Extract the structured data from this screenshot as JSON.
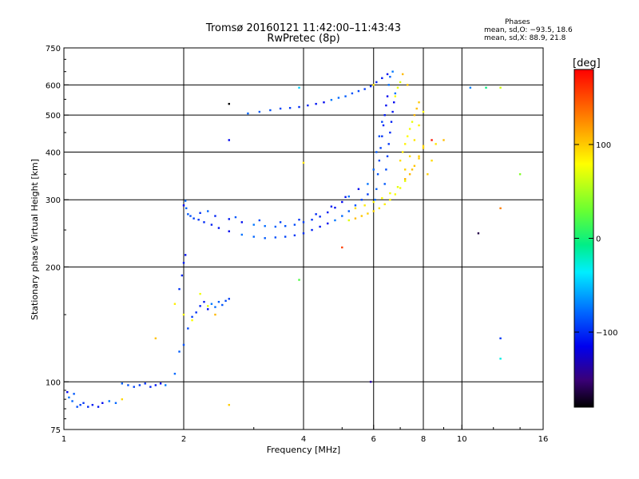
{
  "chart_data": {
    "type": "scatter",
    "title": "Tromsø 20160121 11:42:00–11:43:43",
    "subtitle": "RwPretec (8p)",
    "xlabel": "Frequency [MHz]",
    "ylabel": "Stationary phase Virtual Height [km]",
    "x_scale": "log",
    "y_scale": "log",
    "xlim": [
      1,
      16
    ],
    "ylim": [
      75,
      750
    ],
    "x_ticks": [
      1,
      2,
      4,
      6,
      8,
      10,
      16
    ],
    "x_tick_labels": [
      "1",
      "2",
      "4",
      "6",
      "8",
      "10",
      "16"
    ],
    "y_ticks": [
      75,
      100,
      200,
      300,
      400,
      500,
      600,
      750
    ],
    "y_tick_labels": [
      "75",
      "100",
      "200",
      "300",
      "400",
      "500",
      "600",
      "750"
    ],
    "grid": true,
    "phases_box": {
      "title": "Phases",
      "line1": "mean, sd,O: −93.5, 18.6",
      "line2": "mean, sd,X: 88.9, 21.8"
    },
    "colorbar": {
      "label": "[deg]",
      "range": [
        -180,
        180
      ],
      "ticks": [
        100,
        0,
        -100
      ],
      "tick_labels": [
        "100",
        "0",
        "−100"
      ]
    },
    "series": [
      {
        "name": "O",
        "color_phase_mean": -93.5,
        "points": [
          [
            1.02,
            94
          ],
          [
            1.03,
            91
          ],
          [
            1.05,
            89
          ],
          [
            1.06,
            93
          ],
          [
            1.08,
            86
          ],
          [
            1.1,
            87
          ],
          [
            1.12,
            88
          ],
          [
            1.15,
            86
          ],
          [
            1.18,
            87
          ],
          [
            1.22,
            86
          ],
          [
            1.25,
            88
          ],
          [
            1.3,
            89
          ],
          [
            1.35,
            88
          ],
          [
            1.4,
            99
          ],
          [
            1.45,
            98
          ],
          [
            1.5,
            97
          ],
          [
            1.55,
            98
          ],
          [
            1.6,
            99
          ],
          [
            1.65,
            97
          ],
          [
            1.7,
            98
          ],
          [
            1.75,
            99
          ],
          [
            1.8,
            98
          ],
          [
            1.9,
            105
          ],
          [
            1.95,
            120
          ],
          [
            2.0,
            125
          ],
          [
            2.05,
            138
          ],
          [
            2.1,
            148
          ],
          [
            2.15,
            152
          ],
          [
            2.2,
            158
          ],
          [
            2.25,
            162
          ],
          [
            2.3,
            155
          ],
          [
            2.35,
            160
          ],
          [
            2.4,
            157
          ],
          [
            2.45,
            162
          ],
          [
            2.5,
            159
          ],
          [
            2.55,
            163
          ],
          [
            2.6,
            165
          ],
          [
            1.95,
            175
          ],
          [
            1.98,
            190
          ],
          [
            2.0,
            205
          ],
          [
            2.02,
            215
          ],
          [
            2.0,
            290
          ],
          [
            2.02,
            298
          ],
          [
            2.03,
            285
          ],
          [
            2.05,
            275
          ],
          [
            2.08,
            272
          ],
          [
            2.12,
            268
          ],
          [
            2.18,
            266
          ],
          [
            2.25,
            262
          ],
          [
            2.35,
            258
          ],
          [
            2.45,
            253
          ],
          [
            2.6,
            248
          ],
          [
            2.8,
            243
          ],
          [
            3.0,
            240
          ],
          [
            3.2,
            238
          ],
          [
            3.4,
            239
          ],
          [
            3.6,
            240
          ],
          [
            3.8,
            242
          ],
          [
            4.0,
            245
          ],
          [
            4.2,
            250
          ],
          [
            4.4,
            255
          ],
          [
            4.6,
            260
          ],
          [
            4.8,
            265
          ],
          [
            5.0,
            272
          ],
          [
            5.2,
            280
          ],
          [
            5.4,
            290
          ],
          [
            5.6,
            300
          ],
          [
            5.8,
            310
          ],
          [
            2.2,
            277
          ],
          [
            2.4,
            272
          ],
          [
            2.6,
            267
          ],
          [
            2.8,
            262
          ],
          [
            3.0,
            258
          ],
          [
            3.2,
            256
          ],
          [
            3.4,
            255
          ],
          [
            3.6,
            256
          ],
          [
            3.8,
            258
          ],
          [
            4.0,
            262
          ],
          [
            4.2,
            266
          ],
          [
            4.4,
            271
          ],
          [
            4.6,
            278
          ],
          [
            4.8,
            286
          ],
          [
            5.0,
            296
          ],
          [
            5.2,
            306
          ],
          [
            2.3,
            280
          ],
          [
            2.7,
            270
          ],
          [
            3.1,
            265
          ],
          [
            3.5,
            262
          ],
          [
            3.9,
            266
          ],
          [
            4.3,
            275
          ],
          [
            4.7,
            288
          ],
          [
            5.1,
            305
          ],
          [
            5.5,
            320
          ],
          [
            5.8,
            330
          ],
          [
            2.9,
            505
          ],
          [
            3.1,
            510
          ],
          [
            3.3,
            515
          ],
          [
            3.5,
            520
          ],
          [
            3.7,
            522
          ],
          [
            3.9,
            525
          ],
          [
            4.1,
            530
          ],
          [
            4.3,
            535
          ],
          [
            4.5,
            540
          ],
          [
            4.7,
            548
          ],
          [
            4.9,
            555
          ],
          [
            5.1,
            560
          ],
          [
            5.3,
            570
          ],
          [
            5.5,
            578
          ],
          [
            5.7,
            585
          ],
          [
            5.9,
            595
          ],
          [
            6.1,
            610
          ],
          [
            6.3,
            625
          ],
          [
            6.5,
            640
          ],
          [
            6.7,
            650
          ],
          [
            6.05,
            300
          ],
          [
            6.1,
            320
          ],
          [
            6.15,
            350
          ],
          [
            6.2,
            380
          ],
          [
            6.25,
            410
          ],
          [
            6.3,
            440
          ],
          [
            6.35,
            470
          ],
          [
            6.4,
            500
          ],
          [
            6.45,
            530
          ],
          [
            6.5,
            560
          ],
          [
            6.55,
            600
          ],
          [
            6.6,
            630
          ],
          [
            6.4,
            330
          ],
          [
            6.45,
            360
          ],
          [
            6.5,
            390
          ],
          [
            6.55,
            420
          ],
          [
            6.6,
            450
          ],
          [
            6.65,
            480
          ],
          [
            6.7,
            510
          ],
          [
            6.75,
            540
          ],
          [
            6.8,
            570
          ],
          [
            6.0,
            360
          ],
          [
            6.1,
            400
          ],
          [
            6.2,
            440
          ],
          [
            6.3,
            480
          ]
        ]
      },
      {
        "name": "X",
        "color_phase_mean": 88.9,
        "points": [
          [
            5.2,
            265
          ],
          [
            5.4,
            268
          ],
          [
            5.6,
            272
          ],
          [
            5.8,
            276
          ],
          [
            6.0,
            280
          ],
          [
            6.2,
            285
          ],
          [
            6.4,
            292
          ],
          [
            6.6,
            300
          ],
          [
            6.8,
            310
          ],
          [
            7.0,
            322
          ],
          [
            7.2,
            336
          ],
          [
            7.4,
            350
          ],
          [
            7.6,
            368
          ],
          [
            7.8,
            390
          ],
          [
            8.0,
            415
          ],
          [
            5.4,
            285
          ],
          [
            5.7,
            290
          ],
          [
            6.0,
            296
          ],
          [
            6.3,
            303
          ],
          [
            6.6,
            312
          ],
          [
            6.9,
            324
          ],
          [
            7.2,
            340
          ],
          [
            7.5,
            360
          ],
          [
            7.8,
            385
          ],
          [
            8.0,
            410
          ],
          [
            7.0,
            380
          ],
          [
            7.1,
            400
          ],
          [
            7.2,
            420
          ],
          [
            7.3,
            440
          ],
          [
            7.4,
            460
          ],
          [
            7.5,
            480
          ],
          [
            7.6,
            500
          ],
          [
            7.7,
            520
          ],
          [
            7.8,
            540
          ],
          [
            7.2,
            360
          ],
          [
            7.4,
            390
          ],
          [
            7.6,
            430
          ],
          [
            7.8,
            470
          ],
          [
            8.0,
            510
          ],
          [
            6.8,
            560
          ],
          [
            6.9,
            590
          ],
          [
            7.0,
            610
          ],
          [
            7.1,
            640
          ],
          [
            7.3,
            600
          ],
          [
            8.2,
            350
          ],
          [
            8.4,
            380
          ],
          [
            8.6,
            420
          ],
          [
            1.9,
            160
          ],
          [
            2.0,
            150
          ],
          [
            2.1,
            145
          ],
          [
            2.2,
            170
          ],
          [
            2.3,
            158
          ],
          [
            2.4,
            150
          ],
          [
            1.7,
            130
          ],
          [
            2.6,
            87
          ],
          [
            1.4,
            90
          ],
          [
            6.0,
            600
          ]
        ]
      },
      {
        "name": "scattered",
        "color_phase_mean": 0,
        "points": [
          [
            2.6,
            535
          ],
          [
            2.6,
            430
          ],
          [
            3.9,
            590
          ],
          [
            3.9,
            185
          ],
          [
            4.0,
            375
          ],
          [
            5.0,
            225
          ],
          [
            5.9,
            100
          ],
          [
            10.5,
            590
          ],
          [
            11.5,
            590
          ],
          [
            12.5,
            590
          ],
          [
            12.5,
            285
          ],
          [
            11.0,
            245
          ],
          [
            12.5,
            130
          ],
          [
            12.5,
            115
          ],
          [
            14.0,
            350
          ],
          [
            9.0,
            430
          ],
          [
            8.4,
            430
          ]
        ]
      }
    ]
  }
}
